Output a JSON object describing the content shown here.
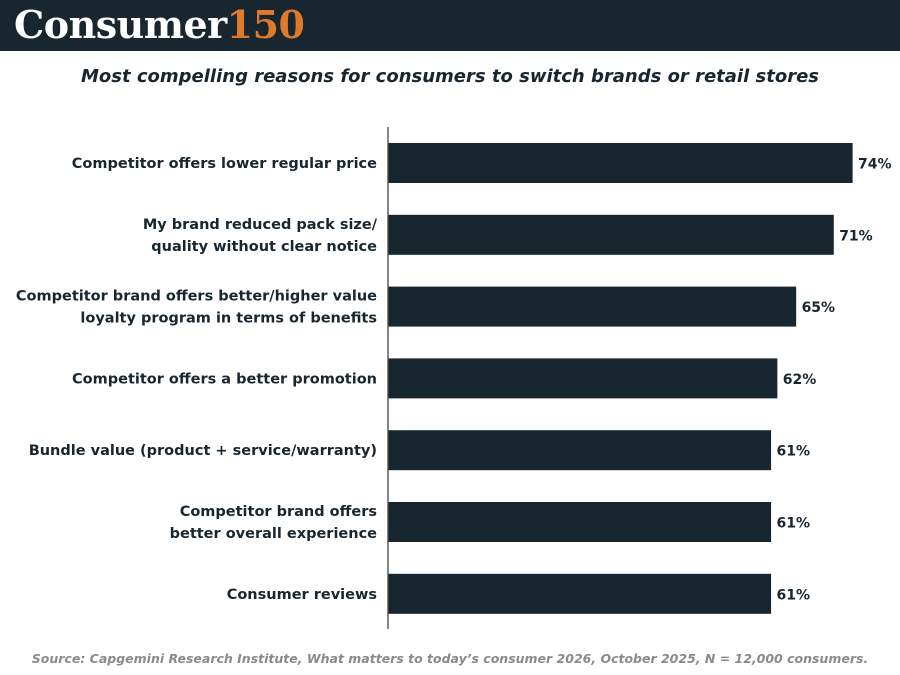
{
  "header": {
    "brand_word": "Consumer",
    "brand_number": "150"
  },
  "subtitle": "Most compelling reasons for consumers to switch brands or retail stores",
  "source": "Source: Capgemini Research Institute, What matters to today’s consumer 2026, October 2025, N = 12,000 consumers.",
  "colors": {
    "header_bg": "#17262f",
    "bar": "#17262f",
    "accent": "#e07a2b",
    "axis": "#333333",
    "text": "#17262f",
    "source": "#8a8a8a"
  },
  "chart_data": {
    "type": "bar",
    "orientation": "horizontal",
    "categories": [
      [
        "Competitor offers lower regular price"
      ],
      [
        "My brand reduced pack size/",
        "quality without clear notice"
      ],
      [
        "Competitor brand offers better/higher value",
        "loyalty program in terms of benefits"
      ],
      [
        "Competitor offers a better promotion"
      ],
      [
        "Bundle value (product + service/warranty)"
      ],
      [
        "Competitor brand offers",
        "better overall experience"
      ],
      [
        "Consumer reviews"
      ]
    ],
    "values": [
      74,
      71,
      65,
      62,
      61,
      61,
      61
    ],
    "value_labels": [
      "74%",
      "71%",
      "65%",
      "62%",
      "61%",
      "61%",
      "61%"
    ],
    "unit": "%",
    "xlim": [
      0,
      74
    ],
    "grid": false,
    "legend": "none"
  }
}
